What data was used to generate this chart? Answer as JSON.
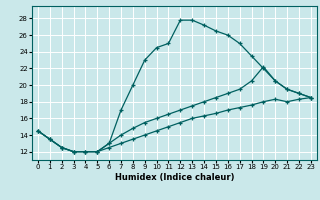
{
  "xlabel": "Humidex (Indice chaleur)",
  "bg_color": "#cae8ea",
  "grid_color": "#ffffff",
  "line_color": "#006060",
  "xlim": [
    -0.5,
    23.5
  ],
  "ylim": [
    11.0,
    29.5
  ],
  "xticks": [
    0,
    1,
    2,
    3,
    4,
    5,
    6,
    7,
    8,
    9,
    10,
    11,
    12,
    13,
    14,
    15,
    16,
    17,
    18,
    19,
    20,
    21,
    22,
    23
  ],
  "yticks": [
    12,
    14,
    16,
    18,
    20,
    22,
    24,
    26,
    28
  ],
  "curve1_x": [
    0,
    1,
    2,
    3,
    4,
    5,
    6,
    7,
    8,
    9,
    10,
    11,
    12,
    13,
    14,
    15,
    16,
    17,
    18,
    19,
    20,
    21,
    22,
    23
  ],
  "curve1_y": [
    14.5,
    13.5,
    12.5,
    12.0,
    12.0,
    12.0,
    13.0,
    17.0,
    20.0,
    23.0,
    24.5,
    25.0,
    27.8,
    27.8,
    27.2,
    26.5,
    26.0,
    25.0,
    23.5,
    22.0,
    20.5,
    19.5,
    19.0,
    18.5
  ],
  "curve2_x": [
    0,
    1,
    2,
    3,
    4,
    5,
    6,
    7,
    8,
    9,
    10,
    11,
    12,
    13,
    14,
    15,
    16,
    17,
    18,
    19,
    20,
    21,
    22,
    23
  ],
  "curve2_y": [
    14.5,
    13.5,
    12.5,
    12.0,
    12.0,
    12.0,
    12.5,
    13.0,
    13.5,
    14.0,
    14.5,
    15.0,
    15.5,
    16.0,
    16.3,
    16.6,
    17.0,
    17.3,
    17.6,
    18.0,
    18.3,
    18.0,
    18.3,
    18.5
  ],
  "curve3_x": [
    0,
    1,
    2,
    3,
    4,
    5,
    6,
    7,
    8,
    9,
    10,
    11,
    12,
    13,
    14,
    15,
    16,
    17,
    18,
    19,
    20,
    21,
    22,
    23
  ],
  "curve3_y": [
    14.5,
    13.5,
    12.5,
    12.0,
    12.0,
    12.0,
    13.0,
    14.0,
    14.8,
    15.5,
    16.0,
    16.5,
    17.0,
    17.5,
    18.0,
    18.5,
    19.0,
    19.5,
    20.5,
    22.2,
    20.5,
    19.5,
    19.0,
    18.5
  ]
}
